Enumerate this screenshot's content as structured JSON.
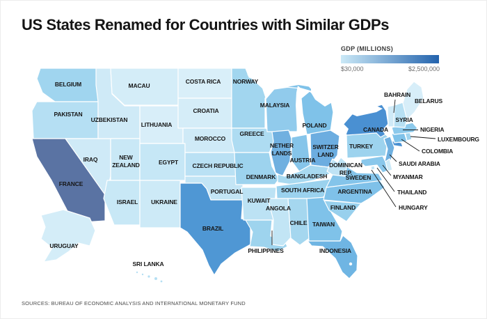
{
  "title": "US States Renamed for Countries with Similar GDPs",
  "legend": {
    "title": "GDP (MILLIONS)",
    "min_label": "$30,000",
    "max_label": "$2,500,000",
    "min_color": "#cbe9f7",
    "max_color": "#2363ad"
  },
  "source": "SOURCES: BUREAU OF ECONOMIC ANALYSIS AND INTERNATIONAL MONETARY FUND",
  "map": {
    "states": [
      {
        "id": "washington",
        "country": "BELGIUM",
        "color": "#a0d5ef"
      },
      {
        "id": "oregon",
        "country": "PAKISTAN",
        "color": "#b5dff3"
      },
      {
        "id": "california",
        "country": "FRANCE",
        "color": "#5a73a3"
      },
      {
        "id": "nevada",
        "country": "IRAQ",
        "color": "#cfeaf7"
      },
      {
        "id": "idaho",
        "country": "UZBEKISTAN",
        "color": "#cfeaf7"
      },
      {
        "id": "montana",
        "country": "MACAU",
        "color": "#d4edf8"
      },
      {
        "id": "wyoming",
        "country": "LITHUANIA",
        "color": "#d8eef9"
      },
      {
        "id": "utah",
        "country": "NEW ZEALAND",
        "lines": [
          "NEW",
          "ZEALAND"
        ],
        "color": "#c9e8f6"
      },
      {
        "id": "colorado",
        "country": "EGYPT",
        "color": "#c6e7f6"
      },
      {
        "id": "arizona",
        "country": "ISRAEL",
        "color": "#c8e8f6"
      },
      {
        "id": "new-mexico",
        "country": "UKRAINE",
        "color": "#cdeaf7"
      },
      {
        "id": "north-dakota",
        "country": "COSTA RICA",
        "color": "#d9eff9"
      },
      {
        "id": "south-dakota",
        "country": "CROATIA",
        "color": "#d5edf8"
      },
      {
        "id": "nebraska",
        "country": "MOROCCO",
        "color": "#cfeaf7"
      },
      {
        "id": "kansas",
        "country": "CZECH REPUBLIC",
        "color": "#bae1f4"
      },
      {
        "id": "oklahoma",
        "country": "PORTUGAL",
        "color": "#c3e5f5"
      },
      {
        "id": "texas",
        "country": "BRAZIL",
        "color": "#4f97d4"
      },
      {
        "id": "minnesota",
        "country": "NORWAY",
        "color": "#a2d6ef"
      },
      {
        "id": "iowa",
        "country": "GREECE",
        "color": "#aedcf2"
      },
      {
        "id": "missouri",
        "country": "DENMARK",
        "color": "#9dd3ee"
      },
      {
        "id": "arkansas",
        "country": "KUWAIT",
        "color": "#bce2f4"
      },
      {
        "id": "louisiana",
        "country": "PHILIPPINES",
        "color": "#9ed4ee"
      },
      {
        "id": "wisconsin",
        "country": "MALAYSIA",
        "color": "#91cbec"
      },
      {
        "id": "michigan",
        "country": "POLAND",
        "color": "#7fc2e9"
      },
      {
        "id": "illinois",
        "country": "NETHERLANDS",
        "lines": [
          "NETHER",
          "LANDS"
        ],
        "color": "#70b0e0"
      },
      {
        "id": "indiana",
        "country": "AUSTRIA",
        "color": "#86c5ea"
      },
      {
        "id": "ohio",
        "country": "SWITZERLAND",
        "lines": [
          "SWITZER",
          "LAND"
        ],
        "color": "#6cade0"
      },
      {
        "id": "kentucky",
        "country": "BANGLADESH",
        "color": "#a8d9f0"
      },
      {
        "id": "tennessee",
        "country": "SOUTH AFRICA",
        "color": "#9bd2ee"
      },
      {
        "id": "mississippi",
        "country": "ANGOLA",
        "color": "#c2e5f5"
      },
      {
        "id": "alabama",
        "country": "CHILE",
        "color": "#a5d7ef"
      },
      {
        "id": "georgia",
        "country": "TAIWAN",
        "color": "#7fc2e9"
      },
      {
        "id": "florida",
        "country": "INDONESIA",
        "color": "#6fb5e3"
      },
      {
        "id": "south-carolina",
        "country": "FINLAND",
        "color": "#98d0ed"
      },
      {
        "id": "north-carolina",
        "country": "ARGENTINA",
        "color": "#7fc1e9"
      },
      {
        "id": "virginia",
        "country": "SWEDEN",
        "color": "#84c4ea"
      },
      {
        "id": "west-virginia",
        "country": "DOMINICAN REP.",
        "lines": [
          "DOMINICAN",
          "REP."
        ],
        "color": "#bfe3f5"
      },
      {
        "id": "pennsylvania",
        "country": "TURKEY",
        "color": "#9dd3ee"
      },
      {
        "id": "new-york",
        "country": "CANADA",
        "color": "#4a90d2"
      },
      {
        "id": "new-jersey",
        "country": "SAUDI ARABIA",
        "color": "#6fb0e0"
      },
      {
        "id": "delaware",
        "country": "MYANMAR",
        "color": "#cdeaf7"
      },
      {
        "id": "maryland",
        "country": "THAILAND",
        "color": "#89c7eb"
      },
      {
        "id": "district-of-columbia",
        "country": "HUNGARY",
        "color": "#c0e4f5"
      },
      {
        "id": "connecticut",
        "country": "COLOMBIA",
        "color": "#7fc2e9"
      },
      {
        "id": "rhode-island",
        "country": "LUXEMBOURG",
        "color": "#a0d4ee"
      },
      {
        "id": "massachusetts",
        "country": "NIGERIA",
        "color": "#8cc9eb"
      },
      {
        "id": "vermont",
        "country": "BAHRAIN",
        "color": "#cfeaf7"
      },
      {
        "id": "new-hampshire",
        "country": "SYRIA",
        "color": "#b7e0f3"
      },
      {
        "id": "maine",
        "country": "BELARUS",
        "color": "#d7eef9"
      },
      {
        "id": "alaska",
        "country": "URUGUAY",
        "color": "#d4edf8"
      },
      {
        "id": "hawaii",
        "country": "SRI LANKA",
        "color": "#b5dff3"
      }
    ]
  }
}
